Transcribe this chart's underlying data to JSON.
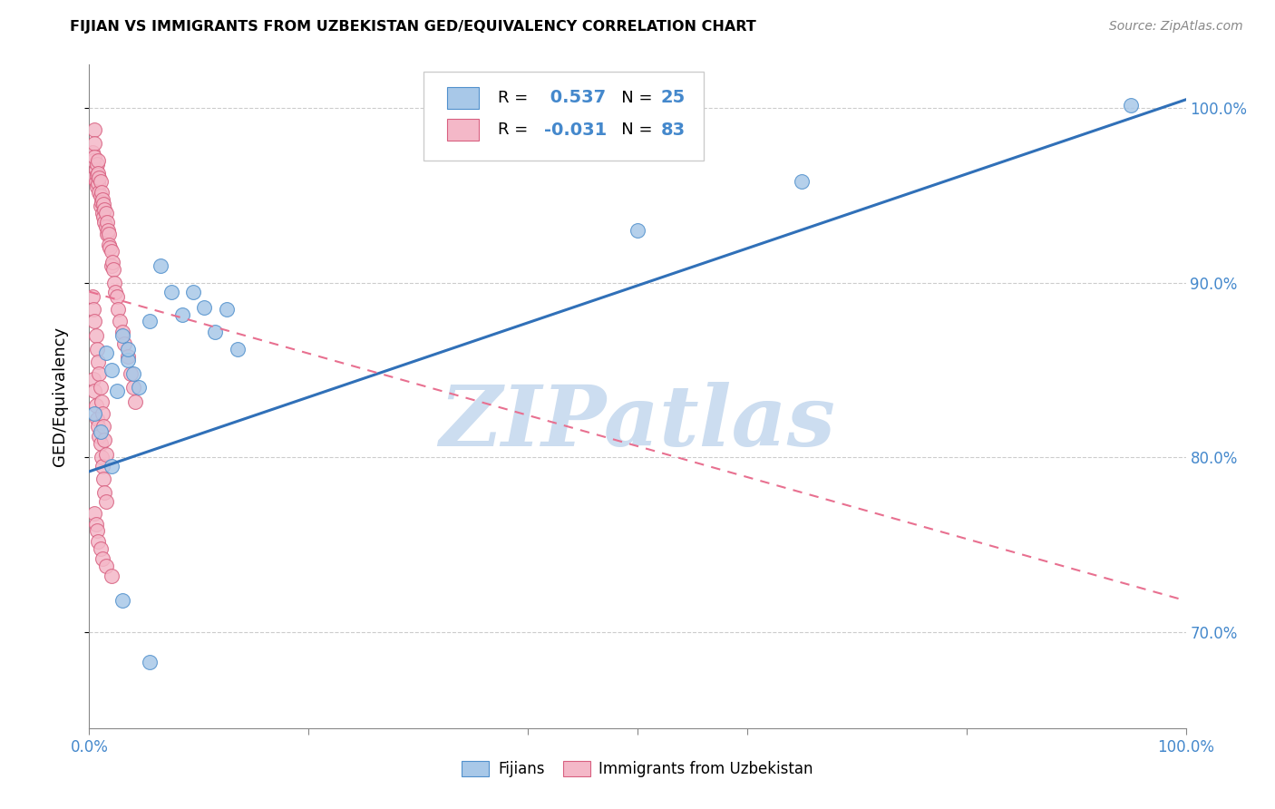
{
  "title": "FIJIAN VS IMMIGRANTS FROM UZBEKISTAN GED/EQUIVALENCY CORRELATION CHART",
  "source": "Source: ZipAtlas.com",
  "ylabel": "GED/Equivalency",
  "ytick_labels": [
    "70.0%",
    "80.0%",
    "90.0%",
    "100.0%"
  ],
  "ytick_values": [
    0.7,
    0.8,
    0.9,
    1.0
  ],
  "legend_blue_r": "0.537",
  "legend_blue_n": "25",
  "legend_pink_r": "-0.031",
  "legend_pink_n": "83",
  "legend_blue_label": "Fijians",
  "legend_pink_label": "Immigrants from Uzbekistan",
  "blue_scatter_color": "#a8c8e8",
  "pink_scatter_color": "#f4b8c8",
  "blue_line_color": "#3070b8",
  "pink_line_color": "#e87090",
  "blue_edge_color": "#5090cc",
  "pink_edge_color": "#d86080",
  "watermark": "ZIPatlas",
  "watermark_color": "#ccddf0",
  "xlim": [
    0.0,
    1.0
  ],
  "ylim": [
    0.645,
    1.025
  ],
  "blue_scatter_x": [
    0.005,
    0.01,
    0.015,
    0.02,
    0.025,
    0.03,
    0.035,
    0.04,
    0.045,
    0.055,
    0.065,
    0.075,
    0.085,
    0.095,
    0.105,
    0.115,
    0.125,
    0.135,
    0.02,
    0.035,
    0.5,
    0.65,
    0.95,
    0.03,
    0.055
  ],
  "blue_scatter_y": [
    0.825,
    0.815,
    0.86,
    0.85,
    0.838,
    0.87,
    0.856,
    0.848,
    0.84,
    0.878,
    0.91,
    0.895,
    0.882,
    0.895,
    0.886,
    0.872,
    0.885,
    0.862,
    0.795,
    0.862,
    0.93,
    0.958,
    1.002,
    0.718,
    0.683
  ],
  "pink_scatter_x": [
    0.003,
    0.004,
    0.004,
    0.005,
    0.005,
    0.005,
    0.006,
    0.006,
    0.007,
    0.007,
    0.007,
    0.008,
    0.008,
    0.008,
    0.009,
    0.009,
    0.01,
    0.01,
    0.01,
    0.011,
    0.011,
    0.012,
    0.012,
    0.013,
    0.013,
    0.014,
    0.014,
    0.015,
    0.015,
    0.016,
    0.016,
    0.017,
    0.018,
    0.018,
    0.019,
    0.02,
    0.02,
    0.021,
    0.022,
    0.023,
    0.024,
    0.025,
    0.026,
    0.028,
    0.03,
    0.032,
    0.035,
    0.038,
    0.04,
    0.042,
    0.004,
    0.005,
    0.006,
    0.007,
    0.008,
    0.009,
    0.01,
    0.011,
    0.012,
    0.013,
    0.014,
    0.015,
    0.003,
    0.004,
    0.005,
    0.006,
    0.007,
    0.008,
    0.009,
    0.01,
    0.011,
    0.012,
    0.013,
    0.014,
    0.015,
    0.005,
    0.006,
    0.007,
    0.008,
    0.01,
    0.012,
    0.015,
    0.02
  ],
  "pink_scatter_y": [
    0.975,
    0.97,
    0.96,
    0.988,
    0.98,
    0.972,
    0.965,
    0.958,
    0.968,
    0.962,
    0.955,
    0.97,
    0.963,
    0.957,
    0.96,
    0.952,
    0.958,
    0.95,
    0.944,
    0.952,
    0.946,
    0.948,
    0.94,
    0.945,
    0.938,
    0.942,
    0.935,
    0.94,
    0.932,
    0.935,
    0.928,
    0.93,
    0.928,
    0.922,
    0.92,
    0.918,
    0.91,
    0.912,
    0.908,
    0.9,
    0.895,
    0.892,
    0.885,
    0.878,
    0.872,
    0.865,
    0.858,
    0.848,
    0.84,
    0.832,
    0.845,
    0.838,
    0.83,
    0.822,
    0.818,
    0.812,
    0.808,
    0.8,
    0.795,
    0.788,
    0.78,
    0.775,
    0.892,
    0.885,
    0.878,
    0.87,
    0.862,
    0.855,
    0.848,
    0.84,
    0.832,
    0.825,
    0.818,
    0.81,
    0.802,
    0.768,
    0.762,
    0.758,
    0.752,
    0.748,
    0.742,
    0.738,
    0.732
  ],
  "blue_trend_x": [
    0.0,
    1.0
  ],
  "blue_trend_y": [
    0.792,
    1.005
  ],
  "pink_trend_x": [
    0.0,
    1.0
  ],
  "pink_trend_y": [
    0.895,
    0.718
  ],
  "axis_color": "#4488cc",
  "grid_color": "#cccccc",
  "title_fontsize": 11.5,
  "tick_fontsize": 12
}
